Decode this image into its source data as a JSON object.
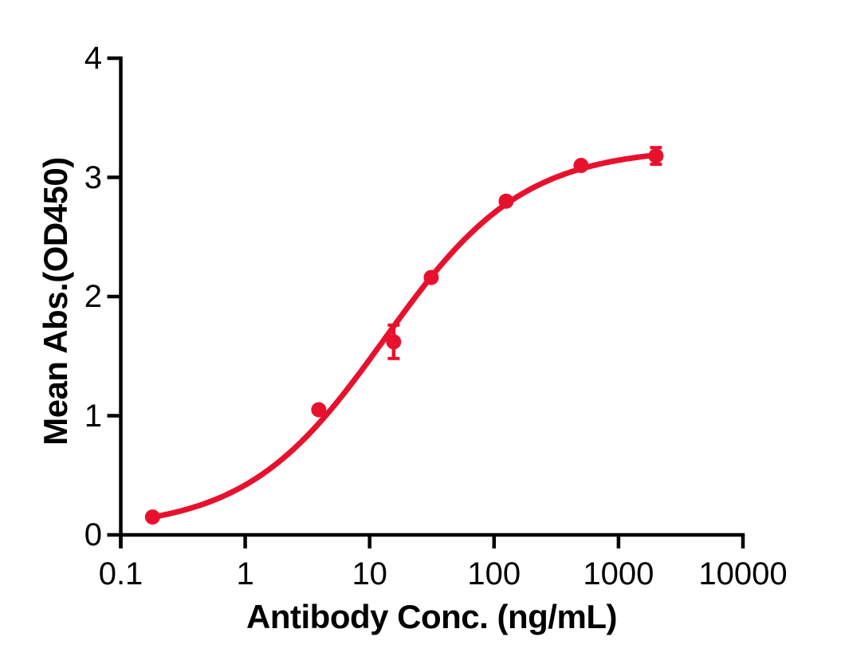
{
  "chart_data": {
    "type": "scatter",
    "subtype": "dose-response-4PL-fit",
    "title": "",
    "xlabel": "Antibody Conc. (ng/mL)",
    "ylabel": "Mean Abs.(OD450)",
    "x_scale": "log",
    "y_scale": "linear",
    "xlim": [
      0.1,
      10000
    ],
    "ylim": [
      0,
      4
    ],
    "x_ticks": [
      0.1,
      1,
      10,
      100,
      1000,
      10000
    ],
    "x_tick_labels": [
      "0.1",
      "1",
      "10",
      "100",
      "1000",
      "10000"
    ],
    "y_ticks": [
      0,
      1,
      2,
      3,
      4
    ],
    "y_tick_labels": [
      "0",
      "1",
      "2",
      "3",
      "4"
    ],
    "grid": false,
    "legend": "none",
    "axis_color": "#000000",
    "background_color": "#ffffff",
    "series": [
      {
        "color": "#E8112D",
        "marker": "circle",
        "points": [
          {
            "x": 0.18,
            "y": 0.15
          },
          {
            "x": 3.9,
            "y": 1.05
          },
          {
            "x": 15.6,
            "y": 1.62,
            "yerr": 0.14
          },
          {
            "x": 31.25,
            "y": 2.16
          },
          {
            "x": 125,
            "y": 2.8
          },
          {
            "x": 500,
            "y": 3.1
          },
          {
            "x": 2000,
            "y": 3.18,
            "yerr": 0.07
          }
        ],
        "fit_curve": {
          "model": "4PL",
          "bottom": 0.04,
          "top": 3.25,
          "ec50": 13.2,
          "hill": 0.78,
          "x_start": 0.18,
          "x_end": 2000
        }
      }
    ]
  }
}
